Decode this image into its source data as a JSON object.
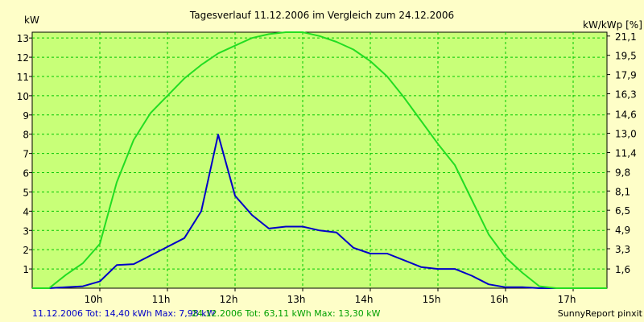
{
  "chart_data": {
    "type": "line",
    "title": "Tagesverlauf 11.12.2006 im Vergleich zum 24.12.2006",
    "ylabel": "kW",
    "ylabel_right": "kW/kWp [%]",
    "ylim": [
      0,
      13.3
    ],
    "yticks": [
      "1",
      "2",
      "3",
      "4",
      "5",
      "6",
      "7",
      "8",
      "9",
      "10",
      "11",
      "12",
      "13"
    ],
    "yticks_right": [
      "1,6",
      "3,3",
      "4,9",
      "6,5",
      "8,1",
      "9,8",
      "11,4",
      "13,0",
      "14,6",
      "16,3",
      "17,9",
      "19,5",
      "21,1"
    ],
    "yticks_right_values": [
      1.0,
      2.05,
      3.05,
      4.05,
      5.05,
      6.05,
      7.05,
      8.05,
      9.05,
      10.1,
      11.1,
      12.1,
      13.1
    ],
    "xlim": [
      "09:00",
      "17:30"
    ],
    "xticks": [
      "10h",
      "11h",
      "12h",
      "13h",
      "14h",
      "15h",
      "16h",
      "17h"
    ],
    "grid": true,
    "series": [
      {
        "name": "11.12.2006",
        "color": "#0000c8",
        "x": [
          "09:00",
          "09:15",
          "09:30",
          "09:45",
          "10:00",
          "10:15",
          "10:30",
          "10:45",
          "11:00",
          "11:15",
          "11:30",
          "11:45",
          "12:00",
          "12:15",
          "12:30",
          "12:45",
          "13:00",
          "13:15",
          "13:30",
          "13:45",
          "14:00",
          "14:15",
          "14:30",
          "14:45",
          "15:00",
          "15:15",
          "15:30",
          "15:45",
          "16:00",
          "16:15",
          "16:30",
          "16:45",
          "17:00",
          "17:15"
        ],
        "y": [
          0,
          0,
          0.05,
          0.1,
          0.35,
          1.2,
          1.25,
          1.7,
          2.15,
          2.6,
          4.0,
          7.98,
          4.8,
          3.8,
          3.1,
          3.2,
          3.2,
          3.0,
          2.9,
          2.1,
          1.8,
          1.8,
          1.45,
          1.1,
          1.0,
          1.0,
          0.65,
          0.2,
          0.05,
          0.05,
          0,
          0,
          0,
          0
        ]
      },
      {
        "name": "24.12.2006",
        "color": "#22dd22",
        "x": [
          "09:00",
          "09:15",
          "09:30",
          "09:45",
          "10:00",
          "10:15",
          "10:30",
          "10:45",
          "11:00",
          "11:15",
          "11:30",
          "11:45",
          "12:00",
          "12:15",
          "12:30",
          "12:45",
          "13:00",
          "13:15",
          "13:30",
          "13:45",
          "14:00",
          "14:15",
          "14:30",
          "14:45",
          "15:00",
          "15:15",
          "15:30",
          "15:45",
          "16:00",
          "16:15",
          "16:30",
          "16:45",
          "17:00",
          "17:15",
          "17:30"
        ],
        "y": [
          0,
          0,
          0.7,
          1.3,
          2.3,
          5.5,
          7.7,
          9.1,
          10.0,
          10.9,
          11.6,
          12.2,
          12.6,
          13.0,
          13.2,
          13.3,
          13.3,
          13.1,
          12.8,
          12.4,
          11.8,
          11.0,
          9.9,
          8.7,
          7.5,
          6.4,
          4.6,
          2.8,
          1.6,
          0.8,
          0.1,
          0,
          0,
          0,
          0
        ]
      }
    ]
  },
  "footer": {
    "series1_text": "11.12.2006 Tot: 14,40 kWh Max: 7,98 kW",
    "series2_text": "24.12.2006 Tot: 63,11 kWh Max: 13,30 kW",
    "credit": "SunnyReport pinxit"
  },
  "colors": {
    "background": "#fefec8",
    "plot_background": "#c8ff78",
    "grid": "#00c800",
    "series1": "#0000c8",
    "series2": "#22dd22"
  }
}
